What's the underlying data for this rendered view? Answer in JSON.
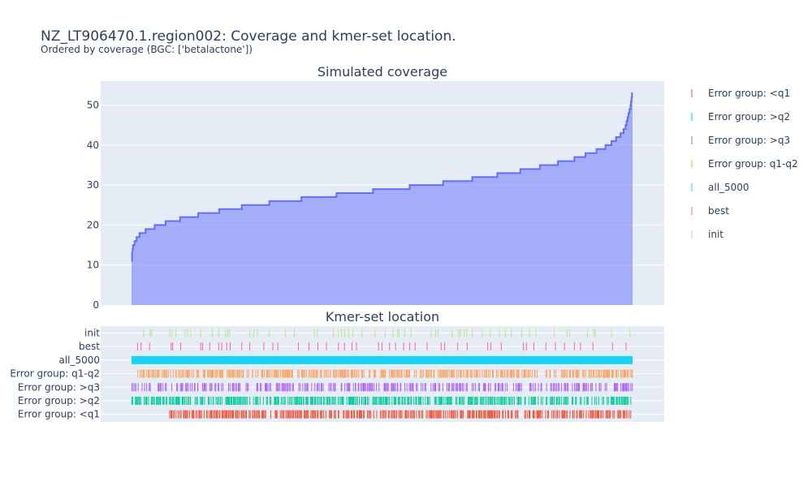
{
  "title": "NZ_LT906470.1.region002: Coverage and kmer-set location.",
  "subtitle": "Ordered by coverage (BGC: ['betalactone'])",
  "chart_data": [
    {
      "type": "area",
      "title": "Simulated coverage",
      "xlabel": "",
      "ylabel": "",
      "ylim": [
        0,
        56
      ],
      "yticks": [
        0,
        10,
        20,
        30,
        40,
        50
      ],
      "grid": true,
      "color": "#636efa",
      "x_range": [
        0,
        1
      ],
      "steps": [
        {
          "x": 0.0,
          "y": 11
        },
        {
          "x": 0.001,
          "y": 13
        },
        {
          "x": 0.002,
          "y": 14
        },
        {
          "x": 0.003,
          "y": 15
        },
        {
          "x": 0.006,
          "y": 16
        },
        {
          "x": 0.01,
          "y": 17
        },
        {
          "x": 0.016,
          "y": 18
        },
        {
          "x": 0.028,
          "y": 19
        },
        {
          "x": 0.046,
          "y": 20
        },
        {
          "x": 0.068,
          "y": 21
        },
        {
          "x": 0.097,
          "y": 22
        },
        {
          "x": 0.133,
          "y": 23
        },
        {
          "x": 0.175,
          "y": 24
        },
        {
          "x": 0.22,
          "y": 25
        },
        {
          "x": 0.275,
          "y": 26
        },
        {
          "x": 0.339,
          "y": 27
        },
        {
          "x": 0.409,
          "y": 28
        },
        {
          "x": 0.482,
          "y": 29
        },
        {
          "x": 0.555,
          "y": 30
        },
        {
          "x": 0.622,
          "y": 31
        },
        {
          "x": 0.68,
          "y": 32
        },
        {
          "x": 0.73,
          "y": 33
        },
        {
          "x": 0.776,
          "y": 34
        },
        {
          "x": 0.815,
          "y": 35
        },
        {
          "x": 0.851,
          "y": 36
        },
        {
          "x": 0.884,
          "y": 37
        },
        {
          "x": 0.906,
          "y": 38
        },
        {
          "x": 0.928,
          "y": 39
        },
        {
          "x": 0.946,
          "y": 40
        },
        {
          "x": 0.958,
          "y": 41
        },
        {
          "x": 0.967,
          "y": 42
        },
        {
          "x": 0.976,
          "y": 43
        },
        {
          "x": 0.982,
          "y": 44
        },
        {
          "x": 0.986,
          "y": 45
        },
        {
          "x": 0.988,
          "y": 46
        },
        {
          "x": 0.99,
          "y": 47
        },
        {
          "x": 0.992,
          "y": 48
        },
        {
          "x": 0.994,
          "y": 49
        },
        {
          "x": 0.996,
          "y": 50
        },
        {
          "x": 0.997,
          "y": 51
        },
        {
          "x": 0.998,
          "y": 52
        },
        {
          "x": 0.999,
          "y": 53
        }
      ]
    },
    {
      "type": "scatter",
      "title": "Kmer-set location",
      "marker": "line-ns",
      "x_range": [
        0,
        1
      ],
      "rows": [
        {
          "name": "init",
          "color": "#b6e880",
          "positions": [
            0.024,
            0.037,
            0.04,
            0.076,
            0.081,
            0.088,
            0.107,
            0.112,
            0.118,
            0.138,
            0.161,
            0.174,
            0.188,
            0.192,
            0.196,
            0.236,
            0.244,
            0.251,
            0.275,
            0.307,
            0.325,
            0.365,
            0.371,
            0.403,
            0.413,
            0.419,
            0.425,
            0.433,
            0.442,
            0.46,
            0.486,
            0.506,
            0.522,
            0.531,
            0.534,
            0.545,
            0.558,
            0.598,
            0.607,
            0.612,
            0.64,
            0.653,
            0.656,
            0.664,
            0.669,
            0.68,
            0.7,
            0.716,
            0.734,
            0.746,
            0.758,
            0.779,
            0.794,
            0.807,
            0.844,
            0.869,
            0.874,
            0.91,
            0.923,
            0.926,
            0.958,
            0.995
          ]
        },
        {
          "name": "best",
          "color": "#ff6692",
          "positions": [
            0.012,
            0.019,
            0.036,
            0.079,
            0.082,
            0.098,
            0.138,
            0.142,
            0.156,
            0.174,
            0.18,
            0.19,
            0.197,
            0.22,
            0.236,
            0.264,
            0.282,
            0.292,
            0.333,
            0.354,
            0.372,
            0.389,
            0.413,
            0.425,
            0.44,
            0.449,
            0.493,
            0.5,
            0.515,
            0.527,
            0.543,
            0.555,
            0.566,
            0.59,
            0.618,
            0.625,
            0.651,
            0.67,
            0.711,
            0.717,
            0.738,
            0.782,
            0.788,
            0.803,
            0.827,
            0.846,
            0.864,
            0.884,
            0.896,
            0.921,
            0.96,
            0.987
          ]
        },
        {
          "name": "all_5000",
          "color": "#19d3f3",
          "solid": true,
          "positions": []
        },
        {
          "name": "Error group: q1-q2",
          "color": "#ffa15a",
          "density": 0.55,
          "seed": 7,
          "start": 0.01,
          "positions": []
        },
        {
          "name": "Error group: >q3",
          "color": "#ab63fa",
          "density": 0.45,
          "seed": 13,
          "start": 0.0,
          "positions": []
        },
        {
          "name": "Error group: >q2",
          "color": "#00cc96",
          "density": 0.62,
          "seed": 23,
          "start": 0.0,
          "positions": []
        },
        {
          "name": "Error group: <q1",
          "color": "#ef553b",
          "density": 0.58,
          "seed": 31,
          "start": 0.075,
          "positions": []
        }
      ]
    }
  ],
  "legend": {
    "placement": "right",
    "items": [
      {
        "label": "Error group: <q1",
        "color": "#ef553b"
      },
      {
        "label": "Error group: >q2",
        "color": "#00cc96"
      },
      {
        "label": "Error group: >q3",
        "color": "#ab63fa"
      },
      {
        "label": "Error group: q1-q2",
        "color": "#ffa15a"
      },
      {
        "label": "all_5000",
        "color": "#19d3f3"
      },
      {
        "label": "best",
        "color": "#ff6692"
      },
      {
        "label": "init",
        "color": "#b6e880"
      }
    ]
  }
}
